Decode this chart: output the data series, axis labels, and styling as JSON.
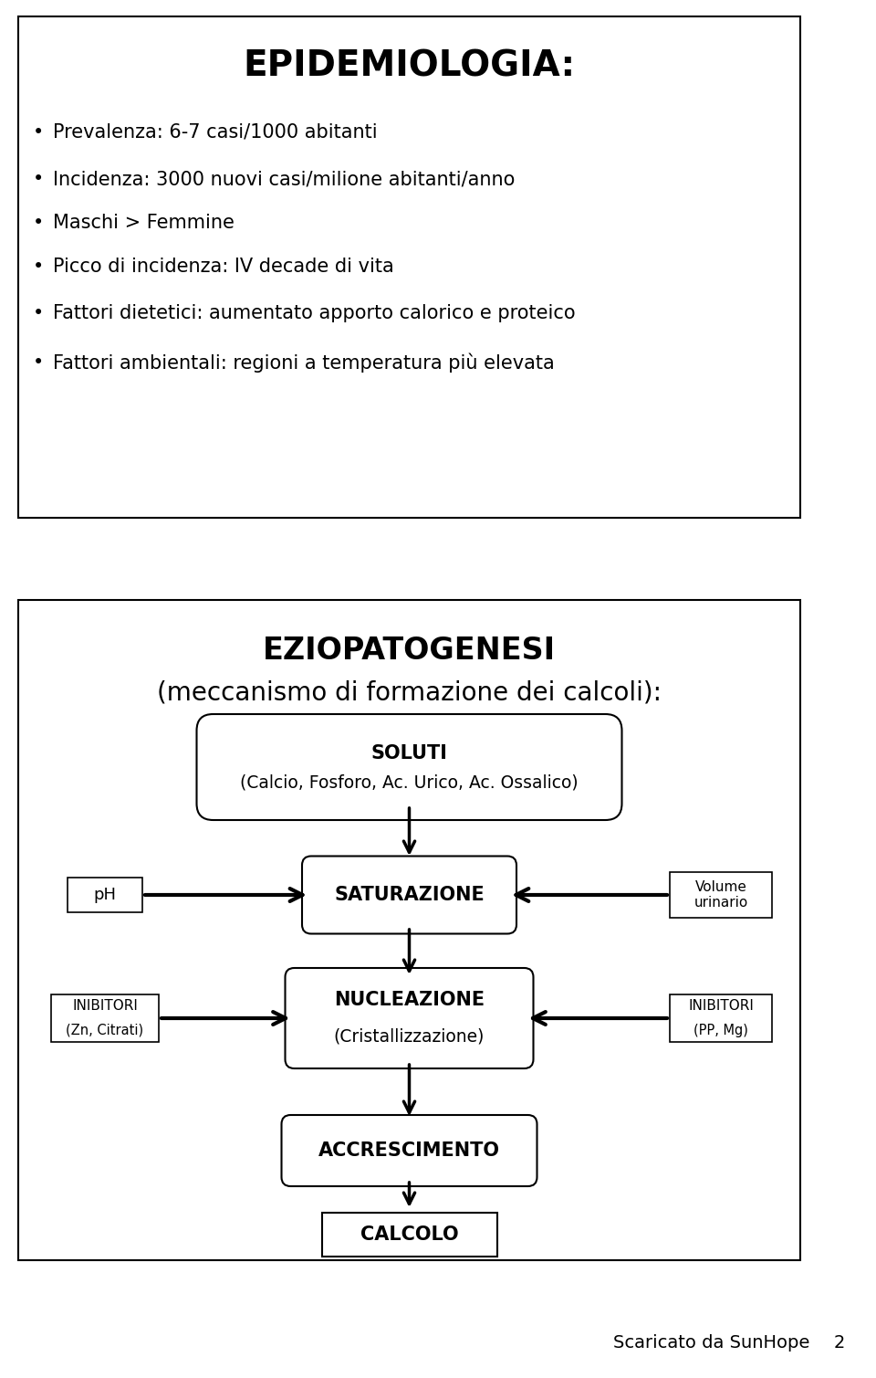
{
  "title": "EPIDEMIOLOGIA:",
  "bullets": [
    "Prevalenza: 6-7 casi/1000 abitanti",
    "Incidenza: 3000 nuovi casi/milione abitanti/anno",
    "Maschi > Femmine",
    "Picco di incidenza: IV decade di vita",
    "Fattori dietetici: aumentato apporto calorico e proteico",
    "Fattori ambientali: regioni a temperatura più elevata"
  ],
  "section2_title1": "EZIOPATOGENESI",
  "section2_title2": "(meccanismo di formazione dei calcoli):",
  "soluti_line1": "SOLUTI",
  "soluti_line2": "(Calcio, Fosforo, Ac. Urico, Ac. Ossalico)",
  "saturazione": "SATURAZIONE",
  "ph_label": "pH",
  "volume_label": "Volume\nurinario",
  "nucleazione_line1": "NUCLEAZIONE",
  "nucleazione_line2": "(Cristallizzazione)",
  "inibitori_left_line1": "INIBITORI",
  "inibitori_left_line2": "(Zn, Citrati)",
  "inibitori_right_line1": "INIBITORI",
  "inibitori_right_line2": "(PP, Mg)",
  "accrescimento": "ACCRESCIMENTO",
  "calcolo": "CALCOLO",
  "footer": "Scaricato da SunHope",
  "page_num": "2",
  "bg_color": "#ffffff",
  "text_color": "#000000",
  "box_color": "#000000",
  "fig_w": 9.6,
  "fig_h": 15.09,
  "dpi": 100
}
